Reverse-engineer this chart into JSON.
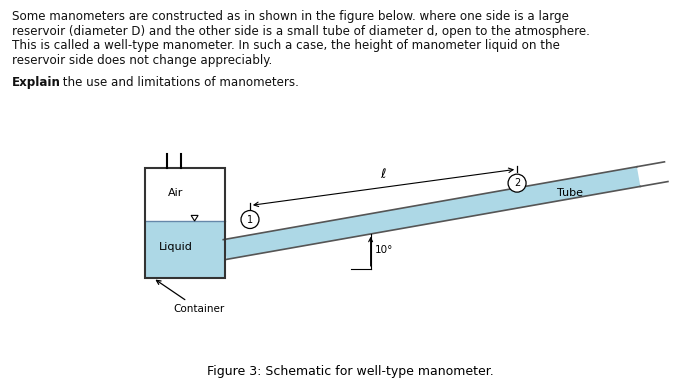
{
  "bg_color": "#ffffff",
  "text_color": "#000000",
  "title_text": "Figure 3: Schematic for well-type manometer.",
  "line1": "Some manometers are constructed as in shown in the figure below. where one side is a large",
  "line2": "reservoir (diameter D) and the other side is a small tube of diameter d, open to the atmosphere.",
  "line3": "This is called a well-type manometer. In such a case, the height of manometer liquid on the",
  "line4": "reservoir side does not change appreciably.",
  "liquid_color": "#add8e6",
  "tube_fill_color": "#add8e6",
  "tube_outline_color": "#555555",
  "container_outline": "#333333"
}
